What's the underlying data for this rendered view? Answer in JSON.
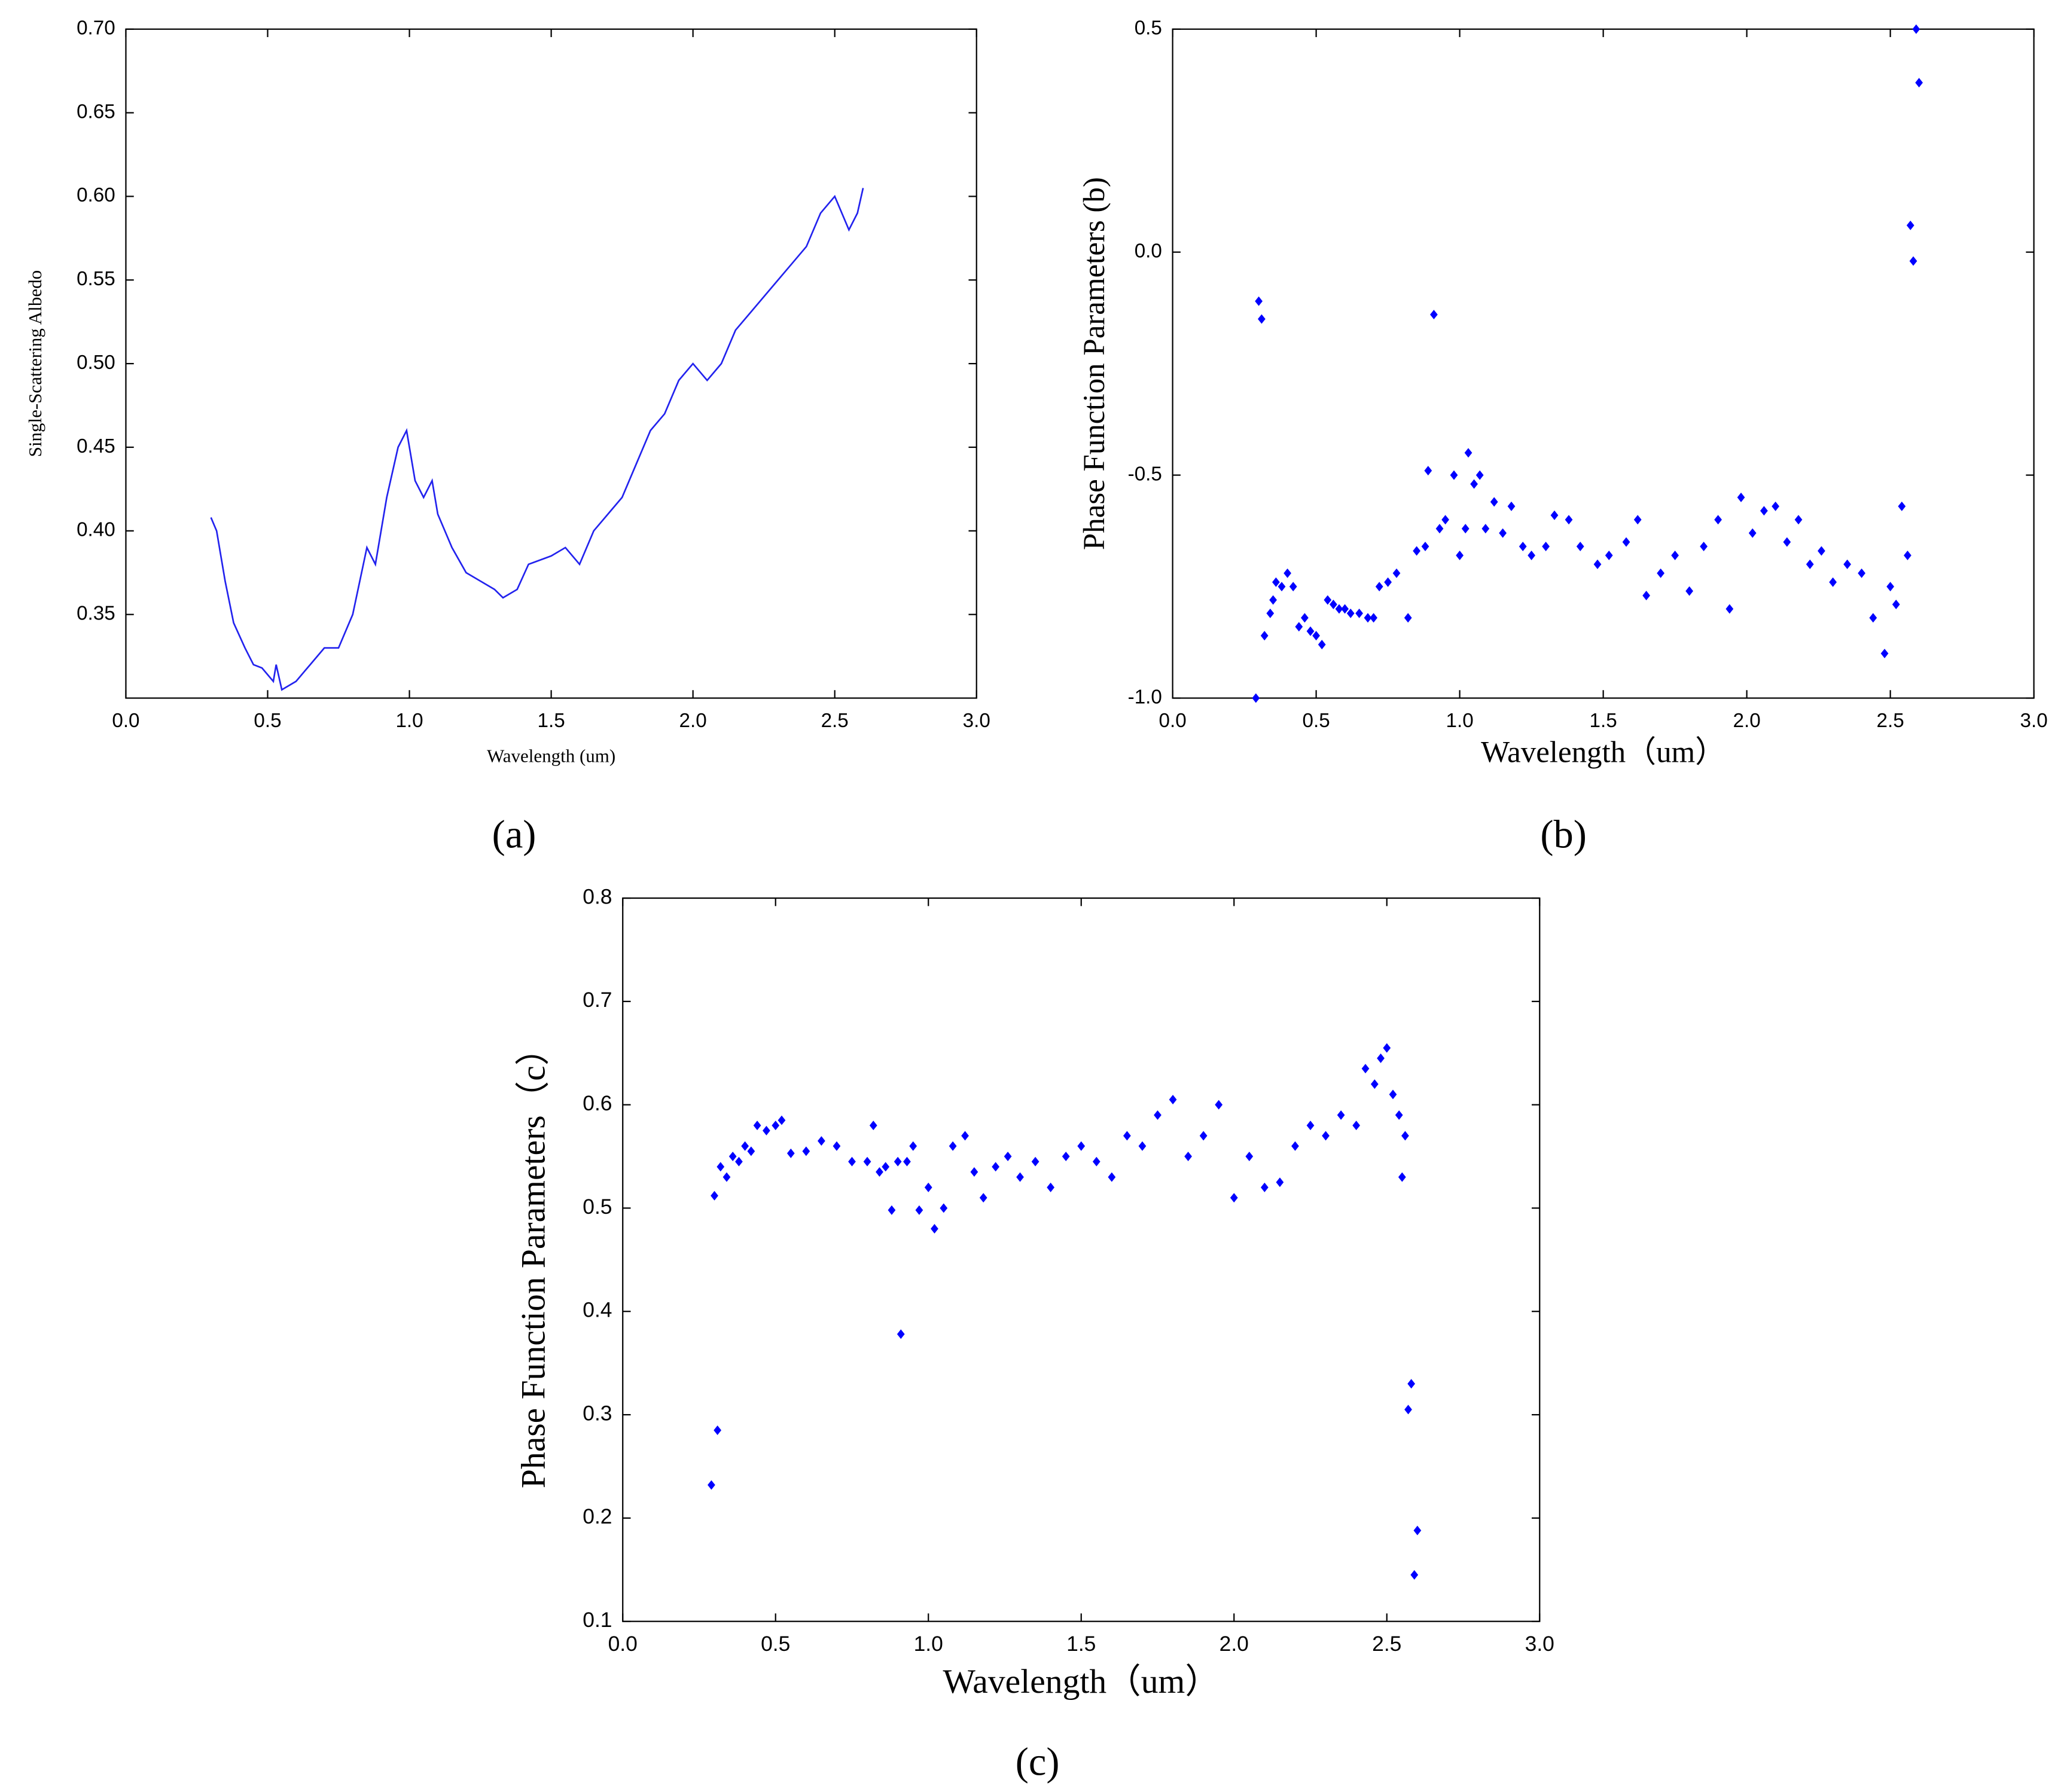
{
  "chart_data": [
    {
      "type": "line",
      "label": "(a)",
      "ylabel": "Single-Scattering Albedo",
      "xlabel": "Wavelength (um)",
      "color": "#2222ee",
      "xlim": [
        0,
        3
      ],
      "ylim": [
        0.3,
        0.7
      ],
      "xticks": [
        {
          "value": 0,
          "label": "0.0"
        },
        0.5,
        {
          "value": 1,
          "label": "1.0"
        },
        1.5,
        {
          "value": 2,
          "label": "2.0"
        },
        2.5,
        {
          "value": 3,
          "label": "3.0"
        }
      ],
      "yticks": [
        0.35,
        {
          "value": 0.4,
          "label": "0.40"
        },
        0.45,
        {
          "value": 0.5,
          "label": "0.50"
        },
        0.55,
        {
          "value": 0.6,
          "label": "0.60"
        },
        0.65,
        {
          "value": 0.7,
          "label": "0.70"
        }
      ],
      "x": [
        0.3,
        0.32,
        0.35,
        0.38,
        0.42,
        0.45,
        0.48,
        0.52,
        0.53,
        0.55,
        0.6,
        0.65,
        0.7,
        0.75,
        0.8,
        0.85,
        0.88,
        0.92,
        0.96,
        0.99,
        1.02,
        1.05,
        1.08,
        1.1,
        1.15,
        1.2,
        1.25,
        1.3,
        1.33,
        1.38,
        1.42,
        1.5,
        1.55,
        1.6,
        1.65,
        1.7,
        1.75,
        1.8,
        1.85,
        1.9,
        1.95,
        2.0,
        2.05,
        2.1,
        2.15,
        2.2,
        2.3,
        2.35,
        2.4,
        2.45,
        2.5,
        2.55,
        2.58,
        2.6
      ],
      "values": [
        0.408,
        0.4,
        0.37,
        0.345,
        0.33,
        0.32,
        0.318,
        0.31,
        0.32,
        0.305,
        0.31,
        0.32,
        0.33,
        0.33,
        0.35,
        0.39,
        0.38,
        0.42,
        0.45,
        0.46,
        0.43,
        0.42,
        0.43,
        0.41,
        0.39,
        0.375,
        0.37,
        0.365,
        0.36,
        0.365,
        0.38,
        0.385,
        0.39,
        0.38,
        0.4,
        0.41,
        0.42,
        0.44,
        0.46,
        0.47,
        0.49,
        0.5,
        0.49,
        0.5,
        0.52,
        0.53,
        0.55,
        0.56,
        0.57,
        0.59,
        0.6,
        0.58,
        0.59,
        0.605
      ]
    },
    {
      "type": "scatter",
      "label": "(b)",
      "ylabel": "Phase Function Parameters (b)",
      "xlabel": "Wavelength（um）",
      "color": "#0000ff",
      "marker": "diamond",
      "xlim": [
        0,
        3
      ],
      "ylim": [
        -1,
        0.5
      ],
      "xticks": [
        {
          "value": 0,
          "label": "0.0"
        },
        0.5,
        {
          "value": 1,
          "label": "1.0"
        },
        1.5,
        {
          "value": 2,
          "label": "2.0"
        },
        2.5,
        {
          "value": 3,
          "label": "3.0"
        }
      ],
      "yticks": [
        {
          "value": -1,
          "label": "-1.0"
        },
        -0.5,
        {
          "value": 0,
          "label": "0.0"
        },
        0.5
      ],
      "x": [
        0.29,
        0.3,
        0.31,
        0.32,
        0.34,
        0.35,
        0.36,
        0.38,
        0.4,
        0.42,
        0.44,
        0.46,
        0.48,
        0.5,
        0.52,
        0.54,
        0.56,
        0.58,
        0.6,
        0.62,
        0.65,
        0.68,
        0.7,
        0.72,
        0.75,
        0.78,
        0.82,
        0.85,
        0.88,
        0.89,
        0.91,
        0.93,
        0.95,
        0.98,
        1.0,
        1.02,
        1.03,
        1.05,
        1.07,
        1.09,
        1.12,
        1.15,
        1.18,
        1.22,
        1.25,
        1.3,
        1.33,
        1.38,
        1.42,
        1.48,
        1.52,
        1.58,
        1.62,
        1.65,
        1.7,
        1.75,
        1.8,
        1.85,
        1.9,
        1.94,
        1.98,
        2.02,
        2.06,
        2.1,
        2.14,
        2.18,
        2.22,
        2.26,
        2.3,
        2.35,
        2.4,
        2.44,
        2.48,
        2.5,
        2.52,
        2.54,
        2.56,
        2.57,
        2.58,
        2.59,
        2.6
      ],
      "values": [
        -1.0,
        -0.11,
        -0.15,
        -0.86,
        -0.81,
        -0.78,
        -0.74,
        -0.75,
        -0.72,
        -0.75,
        -0.84,
        -0.82,
        -0.85,
        -0.86,
        -0.88,
        -0.78,
        -0.79,
        -0.8,
        -0.8,
        -0.81,
        -0.81,
        -0.82,
        -0.82,
        -0.75,
        -0.74,
        -0.72,
        -0.82,
        -0.67,
        -0.66,
        -0.49,
        -0.14,
        -0.62,
        -0.6,
        -0.5,
        -0.68,
        -0.62,
        -0.45,
        -0.52,
        -0.5,
        -0.62,
        -0.56,
        -0.63,
        -0.57,
        -0.66,
        -0.68,
        -0.66,
        -0.59,
        -0.6,
        -0.66,
        -0.7,
        -0.68,
        -0.65,
        -0.6,
        -0.77,
        -0.72,
        -0.68,
        -0.76,
        -0.66,
        -0.6,
        -0.8,
        -0.55,
        -0.63,
        -0.58,
        -0.57,
        -0.65,
        -0.6,
        -0.7,
        -0.67,
        -0.74,
        -0.7,
        -0.72,
        -0.82,
        -0.9,
        -0.75,
        -0.79,
        -0.57,
        -0.68,
        0.06,
        -0.02,
        0.5,
        0.38
      ]
    },
    {
      "type": "scatter",
      "label": "(c)",
      "ylabel": "Phase Function Parameters（c）",
      "xlabel": "Wavelength（um）",
      "color": "#0000ff",
      "marker": "diamond",
      "xlim": [
        0,
        3
      ],
      "ylim": [
        0.1,
        0.8
      ],
      "xticks": [
        {
          "value": 0,
          "label": "0.0"
        },
        0.5,
        {
          "value": 1,
          "label": "1.0"
        },
        1.5,
        {
          "value": 2,
          "label": "2.0"
        },
        2.5,
        {
          "value": 3,
          "label": "3.0"
        }
      ],
      "yticks": [
        0.1,
        0.2,
        0.3,
        0.4,
        0.5,
        0.6,
        0.7,
        0.8
      ],
      "x": [
        0.29,
        0.3,
        0.31,
        0.32,
        0.34,
        0.36,
        0.38,
        0.4,
        0.42,
        0.44,
        0.47,
        0.5,
        0.52,
        0.55,
        0.6,
        0.65,
        0.7,
        0.75,
        0.8,
        0.82,
        0.84,
        0.86,
        0.88,
        0.9,
        0.91,
        0.93,
        0.95,
        0.97,
        1.0,
        1.02,
        1.05,
        1.08,
        1.12,
        1.15,
        1.18,
        1.22,
        1.26,
        1.3,
        1.35,
        1.4,
        1.45,
        1.5,
        1.55,
        1.6,
        1.65,
        1.7,
        1.75,
        1.8,
        1.85,
        1.9,
        1.95,
        2.0,
        2.05,
        2.1,
        2.15,
        2.2,
        2.25,
        2.3,
        2.35,
        2.4,
        2.43,
        2.46,
        2.48,
        2.5,
        2.52,
        2.54,
        2.55,
        2.56,
        2.57,
        2.58,
        2.59,
        2.6
      ],
      "values": [
        0.232,
        0.512,
        0.285,
        0.54,
        0.53,
        0.55,
        0.545,
        0.56,
        0.555,
        0.58,
        0.575,
        0.58,
        0.585,
        0.553,
        0.555,
        0.565,
        0.56,
        0.545,
        0.545,
        0.58,
        0.535,
        0.54,
        0.498,
        0.545,
        0.378,
        0.545,
        0.56,
        0.498,
        0.52,
        0.48,
        0.5,
        0.56,
        0.57,
        0.535,
        0.51,
        0.54,
        0.55,
        0.53,
        0.545,
        0.52,
        0.55,
        0.56,
        0.545,
        0.53,
        0.57,
        0.56,
        0.59,
        0.605,
        0.55,
        0.57,
        0.6,
        0.51,
        0.55,
        0.52,
        0.525,
        0.56,
        0.58,
        0.57,
        0.59,
        0.58,
        0.635,
        0.62,
        0.645,
        0.655,
        0.61,
        0.59,
        0.53,
        0.57,
        0.305,
        0.33,
        0.145,
        0.188
      ]
    }
  ]
}
